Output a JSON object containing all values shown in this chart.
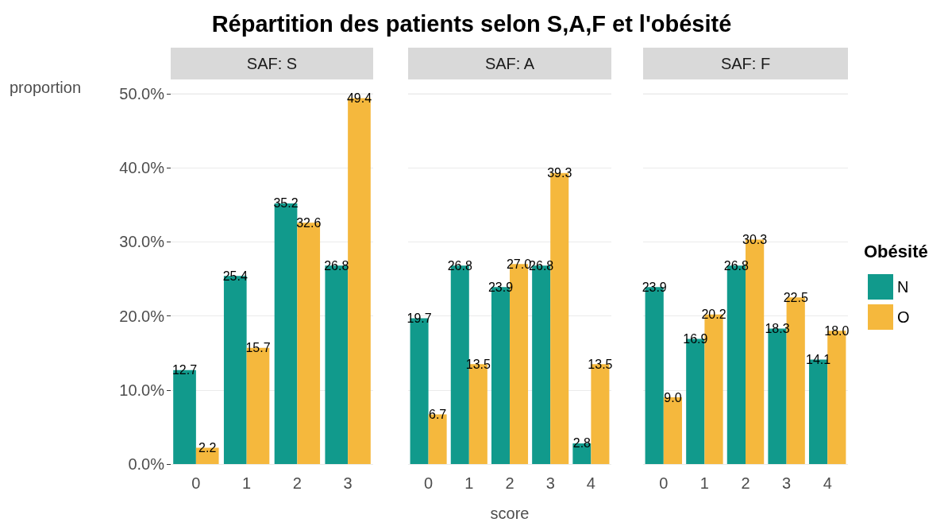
{
  "chart_data": [
    {
      "type": "bar",
      "title": "Répartition des patients selon S,A,F et l'obésité",
      "subtitle": "SAF: S",
      "ylabel": "proportion",
      "categories": [
        "0",
        "1",
        "2",
        "3"
      ],
      "ylim": [
        0,
        50
      ],
      "yticks": [
        {
          "value": 0,
          "label": "0.0%"
        },
        {
          "value": 10,
          "label": "10.0%"
        },
        {
          "value": 20,
          "label": "20.0%"
        },
        {
          "value": 30,
          "label": "30.0%"
        },
        {
          "value": 40,
          "label": "40.0%"
        },
        {
          "value": 50,
          "label": "50.0%"
        }
      ],
      "grid": "y",
      "legend": false,
      "series": [
        {
          "color": "#119a8c",
          "values": [
            12.7,
            25.4,
            35.2,
            26.8
          ],
          "value_labels": [
            "12.7",
            "25.4",
            "35.2",
            "26.8"
          ]
        },
        {
          "color": "#f5b83d",
          "values": [
            2.2,
            15.7,
            32.6,
            49.4
          ],
          "value_labels": [
            "2.2",
            "15.7",
            "32.6",
            "49.4"
          ]
        }
      ]
    },
    {
      "type": "bar",
      "subtitle": "SAF: A",
      "xlabel": "score",
      "categories": [
        "0",
        "1",
        "2",
        "3",
        "4"
      ],
      "ylim": [
        0,
        50
      ],
      "yticks": [
        {
          "value": 0,
          "label": null
        },
        {
          "value": 10,
          "label": null
        },
        {
          "value": 20,
          "label": null
        },
        {
          "value": 30,
          "label": null
        },
        {
          "value": 40,
          "label": null
        },
        {
          "value": 50,
          "label": null
        }
      ],
      "tick_labels": "x",
      "grid": "y",
      "legend": false,
      "series": [
        {
          "color": "#119a8c",
          "values": [
            19.7,
            26.8,
            23.9,
            26.8,
            2.8
          ],
          "value_labels": [
            "19.7",
            "26.8",
            "23.9",
            "26.8",
            "2.8"
          ]
        },
        {
          "color": "#f5b83d",
          "values": [
            6.7,
            13.5,
            27.0,
            39.3,
            13.5
          ],
          "value_labels": [
            "6.7",
            "13.5",
            "27.0",
            "39.3",
            "13.5"
          ]
        }
      ]
    },
    {
      "type": "bar",
      "subtitle": "SAF: F",
      "legend_title": "Obésité",
      "categories": [
        "0",
        "1",
        "2",
        "3",
        "4"
      ],
      "ylim": [
        0,
        50
      ],
      "yticks": [
        {
          "value": 0,
          "label": null
        },
        {
          "value": 10,
          "label": null
        },
        {
          "value": 20,
          "label": null
        },
        {
          "value": 30,
          "label": null
        },
        {
          "value": 40,
          "label": null
        },
        {
          "value": 50,
          "label": null
        }
      ],
      "tick_labels": "x",
      "grid": "y",
      "legend": "right",
      "series": [
        {
          "name": "N",
          "color": "#119a8c",
          "values": [
            23.9,
            16.9,
            26.8,
            18.3,
            14.1
          ],
          "value_labels": [
            "23.9",
            "16.9",
            "26.8",
            "18.3",
            "14.1"
          ]
        },
        {
          "name": "O",
          "color": "#f5b83d",
          "values": [
            9.0,
            20.2,
            30.3,
            22.5,
            18.0
          ],
          "value_labels": [
            "9.0",
            "20.2",
            "30.3",
            "22.5",
            "18.0"
          ]
        }
      ]
    }
  ]
}
